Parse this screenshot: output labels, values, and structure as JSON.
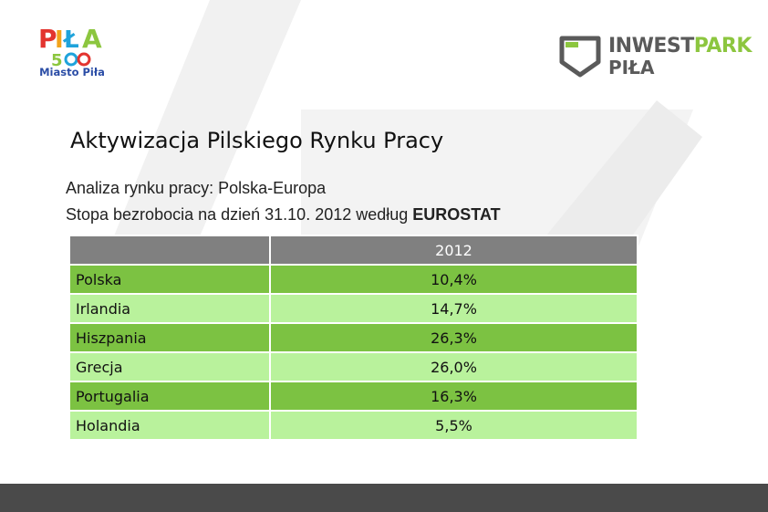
{
  "logos": {
    "left_caption": "Miasto Piła",
    "right_line1_a": "INWEST",
    "right_line1_b": "PARK",
    "right_line2": "PIŁA"
  },
  "title": "Aktywizacja Pilskiego Rynku Pracy",
  "subtitle_line1": "Analiza rynku pracy: Polska-Europa",
  "subtitle_line2": "Stopa bezrobocia na dzień 31.10. 2012 według ",
  "subtitle_emph": "EUROSTAT",
  "table": {
    "header": [
      "",
      "2012"
    ],
    "rows": [
      {
        "country": "Polska",
        "value": "10,4%"
      },
      {
        "country": "Irlandia",
        "value": "14,7%"
      },
      {
        "country": "Hiszpania",
        "value": "26,3%"
      },
      {
        "country": "Grecja",
        "value": "26,0%"
      },
      {
        "country": "Portugalia",
        "value": "16,3%"
      },
      {
        "country": "Holandia",
        "value": "5,5%"
      }
    ]
  },
  "colors": {
    "row_dark": "#7cc242",
    "row_light": "#b9f29c",
    "header_bg": "#808080",
    "footer_bar": "#4a4a4a"
  }
}
